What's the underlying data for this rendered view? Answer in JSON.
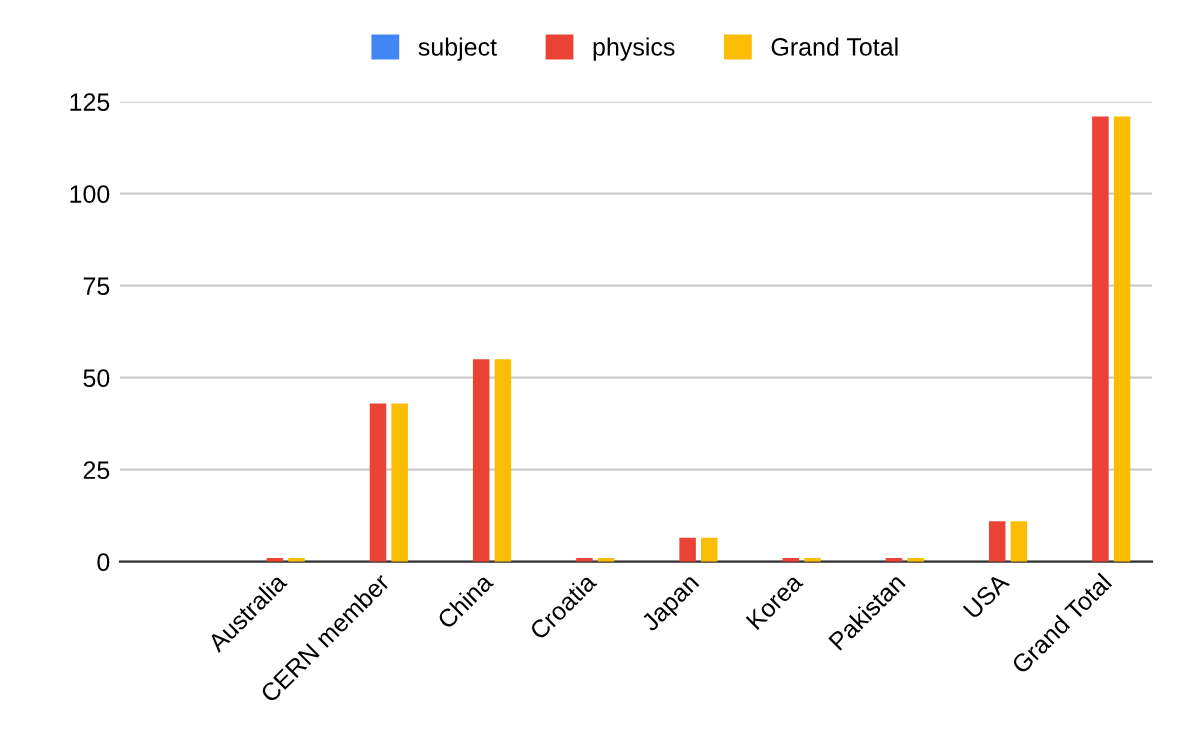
{
  "chart_data": {
    "type": "bar",
    "categories": [
      null,
      "Australia",
      "CERN member",
      "China",
      "Croatia",
      "Japan",
      "Korea",
      "Pakistan",
      "USA",
      "Grand Total"
    ],
    "series": [
      {
        "name": "subject",
        "color": "#4285f4",
        "values": [
          0,
          0,
          0,
          0,
          0,
          0,
          0,
          0,
          0,
          0
        ]
      },
      {
        "name": "physics",
        "color": "#ea4335",
        "values": [
          null,
          1,
          43,
          55,
          1,
          6.5,
          1,
          1,
          11,
          121
        ]
      },
      {
        "name": "Grand Total",
        "color": "#fbbc04",
        "values": [
          null,
          1,
          43,
          55,
          1,
          6.5,
          1,
          1,
          11,
          121
        ]
      }
    ],
    "ylim": [
      0,
      125
    ],
    "yticks": [
      0,
      25,
      50,
      75,
      100,
      125
    ],
    "grid": "y",
    "legend": "top"
  }
}
